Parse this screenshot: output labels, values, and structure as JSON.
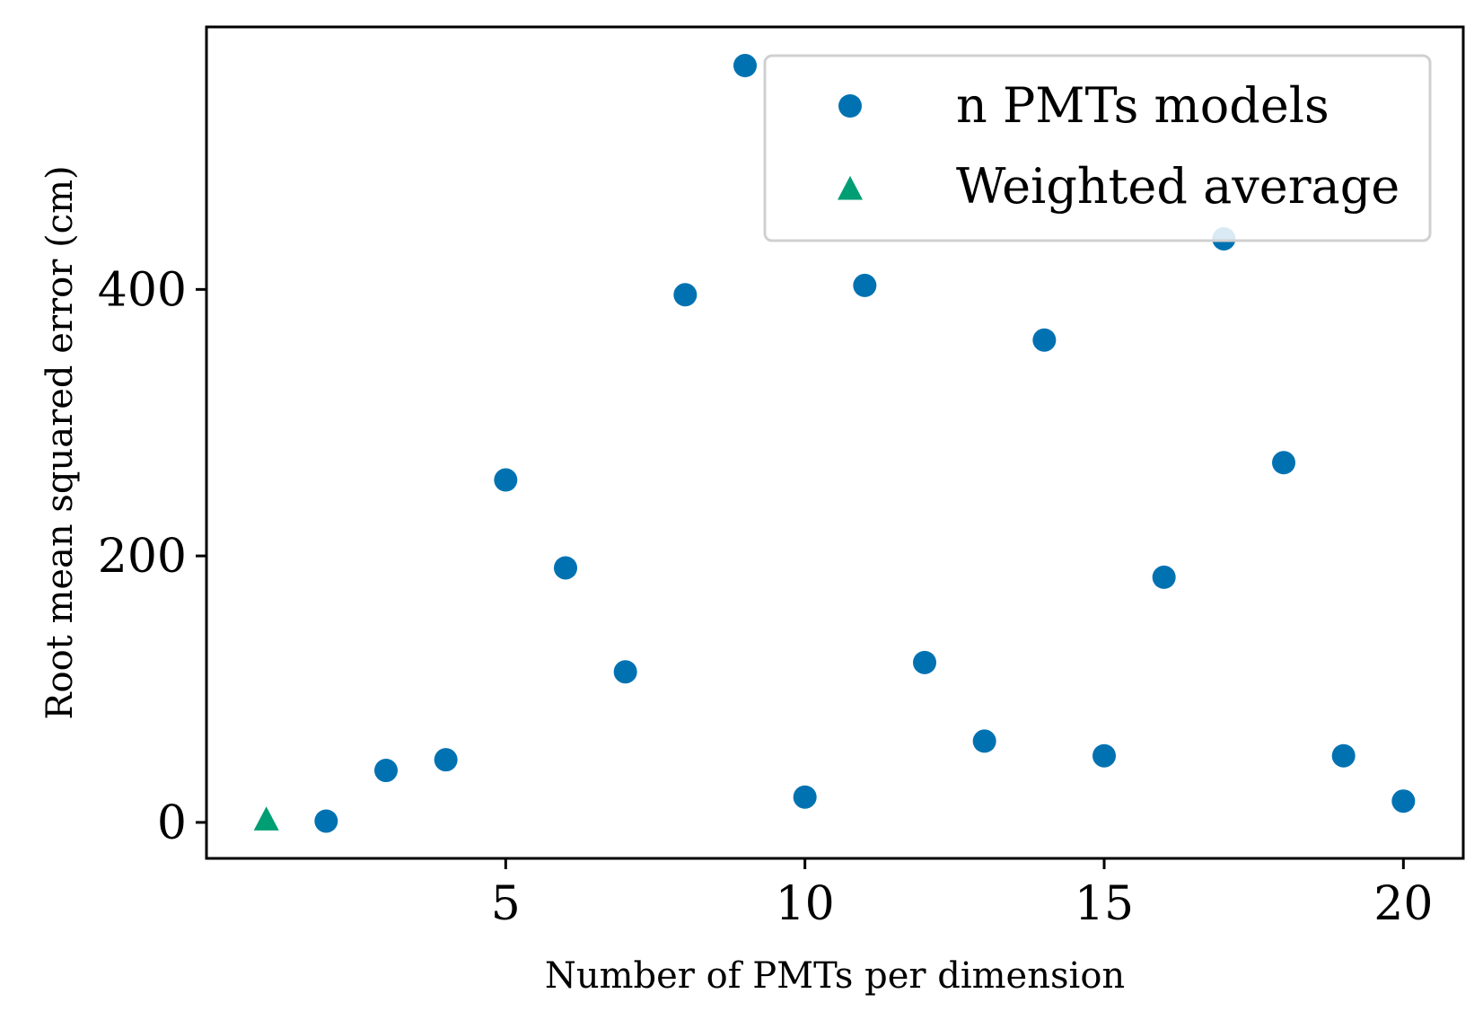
{
  "chart_data": {
    "type": "scatter",
    "xlabel": "Number of PMTs per dimension",
    "ylabel": "Root mean squared error (cm)",
    "xlim": [
      0,
      21
    ],
    "ylim": [
      -27,
      597
    ],
    "xticks": [
      5,
      10,
      15,
      20
    ],
    "yticks": [
      0,
      200,
      400
    ],
    "grid": false,
    "legend_position": "top-right",
    "series": [
      {
        "name": "n PMTs models",
        "marker": "circle",
        "color": "#0072B2",
        "points": [
          {
            "x": 2,
            "y": 1
          },
          {
            "x": 3,
            "y": 39
          },
          {
            "x": 4,
            "y": 47
          },
          {
            "x": 5,
            "y": 257
          },
          {
            "x": 6,
            "y": 191
          },
          {
            "x": 7,
            "y": 113
          },
          {
            "x": 8,
            "y": 396
          },
          {
            "x": 9,
            "y": 568
          },
          {
            "x": 10,
            "y": 19
          },
          {
            "x": 11,
            "y": 403
          },
          {
            "x": 12,
            "y": 120
          },
          {
            "x": 13,
            "y": 61
          },
          {
            "x": 14,
            "y": 362
          },
          {
            "x": 15,
            "y": 50
          },
          {
            "x": 16,
            "y": 184
          },
          {
            "x": 17,
            "y": 438
          },
          {
            "x": 18,
            "y": 270
          },
          {
            "x": 19,
            "y": 50
          },
          {
            "x": 20,
            "y": 16
          }
        ]
      },
      {
        "name": "Weighted average",
        "marker": "triangle",
        "color": "#009E73",
        "points": [
          {
            "x": 1,
            "y": 1
          }
        ]
      }
    ]
  }
}
